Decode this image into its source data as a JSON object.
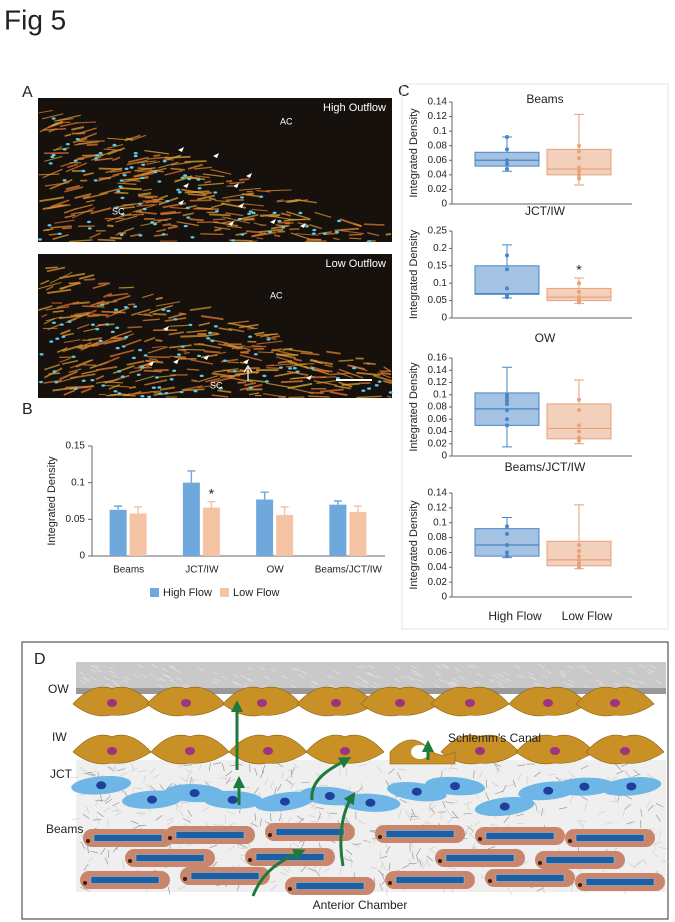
{
  "figure": {
    "title": "Fig 5",
    "panel_labels": [
      "A",
      "B",
      "C",
      "D"
    ]
  },
  "micrographs": [
    {
      "label": "High Outflow",
      "ac": "AC",
      "sc": "SC"
    },
    {
      "label": "Low Outflow",
      "ac": "AC",
      "sc": "SC"
    }
  ],
  "diagram": {
    "layers": [
      "OW",
      "IW",
      "JCT",
      "Beams"
    ],
    "canal": "Schlemm's Canal",
    "chamber": "Anterior Chamber"
  },
  "chart_data": [
    {
      "type": "bar",
      "ylabel": "Integrated Density",
      "categories": [
        "Beams",
        "JCT/IW",
        "OW",
        "Beams/JCT/IW"
      ],
      "series": [
        {
          "name": "High Flow",
          "color": "#6fa8dc",
          "values": [
            0.063,
            0.1,
            0.077,
            0.07
          ],
          "errors": [
            0.005,
            0.016,
            0.01,
            0.005
          ]
        },
        {
          "name": "Low Flow",
          "color": "#f4c3a3",
          "values": [
            0.058,
            0.066,
            0.056,
            0.06
          ],
          "errors": [
            0.009,
            0.008,
            0.011,
            0.008
          ]
        }
      ],
      "ylim": [
        0,
        0.15
      ],
      "yticks": [
        0,
        0.05,
        0.1,
        0.15
      ],
      "annotations": [
        "*"
      ]
    },
    {
      "type": "box",
      "title": "Beams",
      "ylabel": "Integrated Density",
      "categories": [
        null,
        null
      ],
      "boxes": [
        {
          "color": "#4a86c5",
          "min": 0.045,
          "q1": 0.052,
          "median": 0.06,
          "q3": 0.071,
          "max": 0.092,
          "points": [
            0.092,
            0.075,
            0.06,
            0.055,
            0.048
          ]
        },
        {
          "color": "#e8a27a",
          "min": 0.026,
          "q1": 0.04,
          "median": 0.048,
          "q3": 0.075,
          "max": 0.123,
          "points": [
            0.08,
            0.072,
            0.063,
            0.05,
            0.045,
            0.04,
            0.035
          ]
        }
      ],
      "ylim": [
        0,
        0.14
      ],
      "yticks": [
        0,
        0.02,
        0.04,
        0.06,
        0.08,
        0.1,
        0.12,
        0.14
      ],
      "annotations": []
    },
    {
      "type": "box",
      "title": "JCT/IW",
      "ylabel": "Integrated Density",
      "categories": [
        null,
        null
      ],
      "boxes": [
        {
          "color": "#4a86c5",
          "min": 0.058,
          "q1": 0.068,
          "median": 0.07,
          "q3": 0.15,
          "max": 0.21,
          "points": [
            0.18,
            0.14,
            0.085,
            0.065,
            0.06
          ]
        },
        {
          "color": "#e8a27a",
          "min": 0.042,
          "q1": 0.05,
          "median": 0.06,
          "q3": 0.085,
          "max": 0.115,
          "points": [
            0.1,
            0.075,
            0.06,
            0.055,
            0.05,
            0.045
          ]
        }
      ],
      "ylim": [
        0,
        0.25
      ],
      "yticks": [
        0,
        0.05,
        0.1,
        0.15,
        0.2,
        0.25
      ],
      "annotations": [
        "*"
      ]
    },
    {
      "type": "box",
      "title": "OW",
      "ylabel": "Integrated Density",
      "categories": [
        null,
        null
      ],
      "boxes": [
        {
          "color": "#4a86c5",
          "min": 0.015,
          "q1": 0.05,
          "median": 0.077,
          "q3": 0.103,
          "max": 0.145,
          "points": [
            0.1,
            0.095,
            0.09,
            0.085,
            0.075,
            0.06,
            0.05
          ]
        },
        {
          "color": "#e8a27a",
          "min": 0.02,
          "q1": 0.028,
          "median": 0.045,
          "q3": 0.085,
          "max": 0.124,
          "points": [
            0.092,
            0.075,
            0.05,
            0.04,
            0.03,
            0.025
          ]
        }
      ],
      "ylim": [
        0,
        0.16
      ],
      "yticks": [
        0,
        0.02,
        0.04,
        0.06,
        0.08,
        0.1,
        0.12,
        0.14,
        0.16
      ],
      "annotations": []
    },
    {
      "type": "box",
      "title": "Beams/JCT/IW",
      "ylabel": "Integrated Density",
      "categories": [
        "High Flow",
        "Low Flow"
      ],
      "boxes": [
        {
          "color": "#4a86c5",
          "min": 0.053,
          "q1": 0.055,
          "median": 0.07,
          "q3": 0.092,
          "max": 0.107,
          "points": [
            0.095,
            0.085,
            0.07,
            0.06,
            0.055
          ]
        },
        {
          "color": "#e8a27a",
          "min": 0.038,
          "q1": 0.042,
          "median": 0.05,
          "q3": 0.075,
          "max": 0.124,
          "points": [
            0.07,
            0.062,
            0.055,
            0.05,
            0.045,
            0.04
          ]
        }
      ],
      "ylim": [
        0,
        0.14
      ],
      "yticks": [
        0,
        0.02,
        0.04,
        0.06,
        0.08,
        0.1,
        0.12,
        0.14
      ],
      "annotations": []
    }
  ]
}
